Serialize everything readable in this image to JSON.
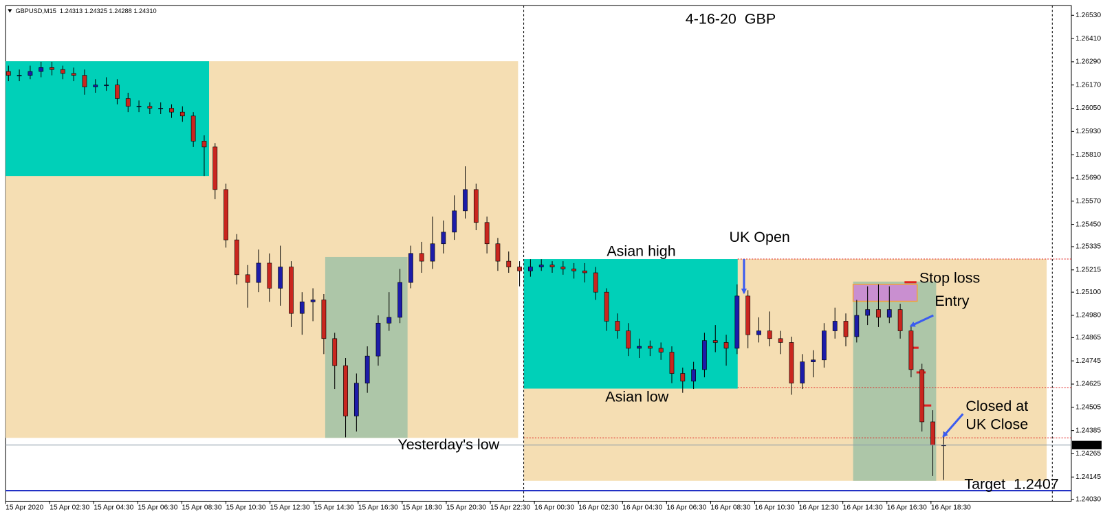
{
  "chart_data": {
    "type": "candlestick",
    "header": "GBPUSD,M15  1.24313 1.24325 1.24288 1.24310",
    "title": "4-16-20  GBP",
    "annotations": [
      "Asian high",
      "UK Open",
      "Stop loss",
      "Entry",
      "Asian low",
      "Closed at",
      "UK Close",
      "Yesterday's low",
      "Target  1.2407"
    ],
    "up_color": "#1c1ca8",
    "down_color": "#c9261f",
    "ylim": [
      1.2402,
      1.2658
    ],
    "yticks": [
      {
        "value": 1.2653,
        "label": "1.26530"
      },
      {
        "value": 1.2641,
        "label": "1.26410"
      },
      {
        "value": 1.2629,
        "label": "1.26290"
      },
      {
        "value": 1.2617,
        "label": "1.26170"
      },
      {
        "value": 1.2605,
        "label": "1.26050"
      },
      {
        "value": 1.2593,
        "label": "1.25930"
      },
      {
        "value": 1.2581,
        "label": "1.25810"
      },
      {
        "value": 1.2569,
        "label": "1.25690"
      },
      {
        "value": 1.2557,
        "label": "1.25570"
      },
      {
        "value": 1.2545,
        "label": "1.25450"
      },
      1.25335,
      1.25215,
      {
        "value": 1.251,
        "label": "1.25100"
      },
      {
        "value": 1.2498,
        "label": "1.24980"
      },
      1.24865,
      1.24745,
      1.24625,
      1.24505,
      1.24385,
      1.24265,
      1.24145,
      {
        "value": 1.2403,
        "label": "1.24030"
      }
    ],
    "last_price": {
      "value": 1.2431,
      "label": "1.24310"
    },
    "xtick_labels": [
      "15 Apr 2020",
      "15 Apr 02:30",
      "15 Apr 04:30",
      "15 Apr 06:30",
      "15 Apr 08:30",
      "15 Apr 10:30",
      "15 Apr 12:30",
      "15 Apr 14:30",
      "15 Apr 16:30",
      "15 Apr 18:30",
      "15 Apr 20:30",
      "15 Apr 22:30",
      "16 Apr 00:30",
      "16 Apr 02:30",
      "16 Apr 04:30",
      "16 Apr 06:30",
      "16 Apr 08:30",
      "16 Apr 10:30",
      "16 Apr 12:30",
      "16 Apr 14:30",
      "16 Apr 16:30",
      "16 Apr 18:30"
    ],
    "open": [
      1.2624,
      1.2622,
      1.2622,
      1.2624,
      1.2626,
      1.2625,
      1.2623,
      1.2622,
      1.2616,
      1.2617,
      1.2617,
      1.261,
      1.2606,
      1.2606,
      1.2605,
      1.2605,
      1.2603,
      1.2601,
      1.2588,
      1.2585,
      1.2563,
      1.2537,
      1.2519,
      1.2515,
      1.2525,
      1.2512,
      1.2523,
      1.2499,
      1.2505,
      1.2506,
      1.2486,
      1.2472,
      1.2446,
      1.2463,
      1.2477,
      1.2494,
      1.2497,
      1.2515,
      1.253,
      1.2526,
      1.2535,
      1.2541,
      1.2552,
      1.2563,
      1.2546,
      1.2535,
      1.2526,
      1.2523,
      1.2521,
      1.2523,
      1.2524,
      1.2523,
      1.2522,
      1.2521,
      1.252,
      1.251,
      1.2495,
      1.249,
      1.2481,
      1.2482,
      1.2481,
      1.2479,
      1.2468,
      1.2464,
      1.247,
      1.2485,
      1.2484,
      1.2481,
      1.2508,
      1.2488,
      1.249,
      1.2486,
      1.2484,
      1.2463,
      1.2474,
      1.2475,
      1.249,
      1.2495,
      1.2487,
      1.2498,
      1.2501,
      1.2497,
      1.2501,
      1.249,
      1.247,
      1.2443,
      1.2431
    ],
    "high": [
      1.2627,
      1.2625,
      1.2627,
      1.2629,
      1.2629,
      1.2627,
      1.2626,
      1.2625,
      1.262,
      1.2621,
      1.262,
      1.2613,
      1.2609,
      1.2608,
      1.2608,
      1.2607,
      1.2606,
      1.2603,
      1.2591,
      1.2587,
      1.2566,
      1.254,
      1.2524,
      1.2532,
      1.253,
      1.2534,
      1.2526,
      1.251,
      1.2512,
      1.2509,
      1.2489,
      1.2476,
      1.2468,
      1.2482,
      1.2498,
      1.251,
      1.2522,
      1.2534,
      1.2536,
      1.2549,
      1.2547,
      1.256,
      1.2575,
      1.2566,
      1.2549,
      1.2538,
      1.2531,
      1.2526,
      1.2527,
      1.2527,
      1.2526,
      1.2526,
      1.2525,
      1.2525,
      1.2523,
      1.2512,
      1.2499,
      1.2494,
      1.2486,
      1.2485,
      1.2484,
      1.2482,
      1.2471,
      1.2474,
      1.2489,
      1.2493,
      1.2488,
      1.2514,
      1.2511,
      1.2497,
      1.25,
      1.249,
      1.2487,
      1.2478,
      1.248,
      1.2494,
      1.2502,
      1.2499,
      1.2506,
      1.2513,
      1.2514,
      1.2513,
      1.2504,
      1.2493,
      1.2473,
      1.2449,
      1.2438
    ],
    "low": [
      1.2619,
      1.2619,
      1.262,
      1.2621,
      1.2622,
      1.262,
      1.2619,
      1.2612,
      1.2613,
      1.2614,
      1.2607,
      1.2603,
      1.2603,
      1.2602,
      1.2602,
      1.26,
      1.2598,
      1.2585,
      1.257,
      1.2558,
      1.2533,
      1.2514,
      1.2502,
      1.251,
      1.2505,
      1.2503,
      1.2492,
      1.2488,
      1.2495,
      1.2478,
      1.246,
      1.2435,
      1.2438,
      1.2458,
      1.2472,
      1.249,
      1.2494,
      1.2512,
      1.252,
      1.2522,
      1.253,
      1.2537,
      1.2548,
      1.2542,
      1.253,
      1.2521,
      1.252,
      1.2513,
      1.2518,
      1.2521,
      1.252,
      1.2519,
      1.2517,
      1.2515,
      1.2506,
      1.249,
      1.2486,
      1.2477,
      1.2476,
      1.2477,
      1.2475,
      1.2463,
      1.2458,
      1.246,
      1.2466,
      1.2479,
      1.2472,
      1.2478,
      1.2481,
      1.2484,
      1.2482,
      1.2478,
      1.2457,
      1.246,
      1.2466,
      1.2471,
      1.2486,
      1.2482,
      1.2484,
      1.2493,
      1.2492,
      1.2494,
      1.2486,
      1.2466,
      1.2438,
      1.2415,
      1.2413
    ],
    "close": [
      1.2622,
      1.2622,
      1.2624,
      1.2626,
      1.2625,
      1.2623,
      1.2622,
      1.2616,
      1.2617,
      1.2617,
      1.261,
      1.2606,
      1.2606,
      1.2605,
      1.2605,
      1.2603,
      1.2601,
      1.2588,
      1.2585,
      1.2563,
      1.2537,
      1.2519,
      1.2515,
      1.2525,
      1.2512,
      1.2523,
      1.2499,
      1.2505,
      1.2506,
      1.2486,
      1.2472,
      1.2446,
      1.2463,
      1.2477,
      1.2494,
      1.2497,
      1.2515,
      1.253,
      1.2526,
      1.2535,
      1.2541,
      1.2552,
      1.2563,
      1.2546,
      1.2535,
      1.2526,
      1.2523,
      1.2521,
      1.2523,
      1.2524,
      1.2523,
      1.2522,
      1.2521,
      1.252,
      1.251,
      1.2495,
      1.249,
      1.2481,
      1.2482,
      1.2481,
      1.2479,
      1.2468,
      1.2464,
      1.247,
      1.2485,
      1.2484,
      1.2481,
      1.2508,
      1.2488,
      1.249,
      1.2486,
      1.2484,
      1.2463,
      1.2474,
      1.2475,
      1.249,
      1.2495,
      1.2487,
      1.2498,
      1.2501,
      1.2497,
      1.2501,
      1.249,
      1.247,
      1.2443,
      1.2431,
      1.2431
    ]
  }
}
